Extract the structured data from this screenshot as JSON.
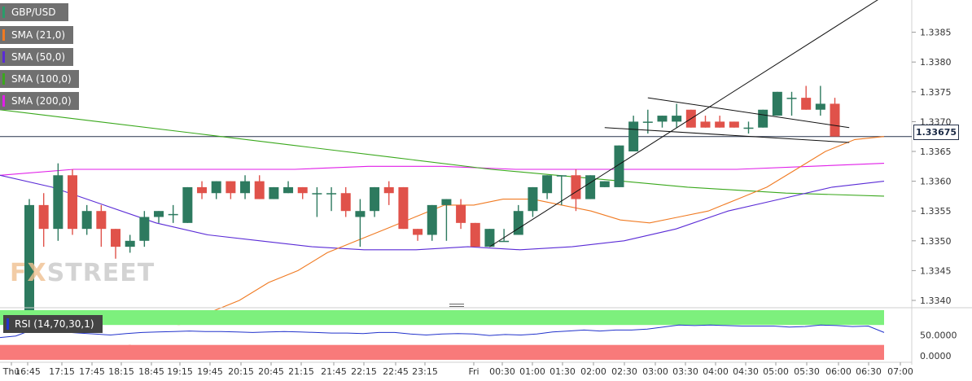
{
  "legend": [
    {
      "label": "GBP/USD",
      "color": "#2a9d6a"
    },
    {
      "label": "SMA (21,0)",
      "color": "#f07a22"
    },
    {
      "label": "SMA (50,0)",
      "color": "#5a2bd6"
    },
    {
      "label": "SMA (100,0)",
      "color": "#3aa81c"
    },
    {
      "label": "SMA (200,0)",
      "color": "#e01ee8"
    }
  ],
  "watermark": {
    "a": "FX",
    "b": "STREET"
  },
  "rsi_label": "RSI (14,70,30,1)",
  "last_price_label": "1.33675",
  "colors": {
    "up": "#2d7a5f",
    "down": "#e0524a",
    "rsi_overbought": "#7df07d",
    "rsi_oversold": "#f87a7a",
    "rsi_line": "#2233cc",
    "price_line": "#26324a"
  },
  "chart_data": {
    "type": "candlestick",
    "symbol": "GBP/USD",
    "timeframe_minutes": 15,
    "ylim": [
      1.334,
      1.339
    ],
    "y_ticks": [
      "1.3340",
      "1.3345",
      "1.3350",
      "1.3355",
      "1.3360",
      "1.3365",
      "1.3370",
      "1.3375",
      "1.3380",
      "1.3385"
    ],
    "x_ticks": [
      "Thu",
      "16:45",
      "17:15",
      "17:45",
      "18:15",
      "18:45",
      "19:15",
      "19:45",
      "20:15",
      "20:45",
      "21:15",
      "21:45",
      "22:15",
      "22:45",
      "23:15",
      "Fri",
      "00:30",
      "01:00",
      "01:30",
      "02:00",
      "02:30",
      "03:00",
      "03:30",
      "04:00",
      "04:30",
      "05:00",
      "05:30",
      "06:00",
      "06:30",
      "07:00"
    ],
    "last_price": 1.33675,
    "candles": [
      {
        "o": 1.3335,
        "h": 1.3357,
        "l": 1.3335,
        "c": 1.3356
      },
      {
        "o": 1.3356,
        "h": 1.3358,
        "l": 1.3349,
        "c": 1.3352
      },
      {
        "o": 1.3352,
        "h": 1.3363,
        "l": 1.335,
        "c": 1.3361
      },
      {
        "o": 1.3361,
        "h": 1.3362,
        "l": 1.3351,
        "c": 1.3352
      },
      {
        "o": 1.3352,
        "h": 1.3356,
        "l": 1.3351,
        "c": 1.3355
      },
      {
        "o": 1.3355,
        "h": 1.3356,
        "l": 1.3349,
        "c": 1.3352
      },
      {
        "o": 1.3352,
        "h": 1.3352,
        "l": 1.3347,
        "c": 1.3349
      },
      {
        "o": 1.3349,
        "h": 1.3351,
        "l": 1.3348,
        "c": 1.335
      },
      {
        "o": 1.335,
        "h": 1.3355,
        "l": 1.3349,
        "c": 1.3354
      },
      {
        "o": 1.3354,
        "h": 1.3355,
        "l": 1.3353,
        "c": 1.3355
      },
      {
        "o": 1.33545,
        "h": 1.3356,
        "l": 1.3353,
        "c": 1.33545
      },
      {
        "o": 1.3353,
        "h": 1.3359,
        "l": 1.3353,
        "c": 1.3359
      },
      {
        "o": 1.3359,
        "h": 1.336,
        "l": 1.3357,
        "c": 1.3358
      },
      {
        "o": 1.3358,
        "h": 1.336,
        "l": 1.3357,
        "c": 1.336
      },
      {
        "o": 1.336,
        "h": 1.336,
        "l": 1.3357,
        "c": 1.3358
      },
      {
        "o": 1.3358,
        "h": 1.3361,
        "l": 1.3357,
        "c": 1.336
      },
      {
        "o": 1.336,
        "h": 1.3361,
        "l": 1.3357,
        "c": 1.3357
      },
      {
        "o": 1.3357,
        "h": 1.3359,
        "l": 1.3357,
        "c": 1.3359
      },
      {
        "o": 1.3358,
        "h": 1.336,
        "l": 1.3358,
        "c": 1.3359
      },
      {
        "o": 1.3359,
        "h": 1.3359,
        "l": 1.3357,
        "c": 1.3358
      },
      {
        "o": 1.3358,
        "h": 1.3359,
        "l": 1.3354,
        "c": 1.3358
      },
      {
        "o": 1.3358,
        "h": 1.3359,
        "l": 1.3355,
        "c": 1.3358
      },
      {
        "o": 1.3358,
        "h": 1.3359,
        "l": 1.3354,
        "c": 1.3355
      },
      {
        "o": 1.3354,
        "h": 1.3357,
        "l": 1.3349,
        "c": 1.3355
      },
      {
        "o": 1.3355,
        "h": 1.3359,
        "l": 1.3354,
        "c": 1.3359
      },
      {
        "o": 1.3359,
        "h": 1.336,
        "l": 1.3356,
        "c": 1.3358
      },
      {
        "o": 1.3359,
        "h": 1.3359,
        "l": 1.3352,
        "c": 1.3352
      },
      {
        "o": 1.3352,
        "h": 1.3352,
        "l": 1.335,
        "c": 1.3351
      },
      {
        "o": 1.3351,
        "h": 1.3356,
        "l": 1.335,
        "c": 1.3356
      },
      {
        "o": 1.3356,
        "h": 1.3357,
        "l": 1.335,
        "c": 1.3357
      },
      {
        "o": 1.3356,
        "h": 1.3357,
        "l": 1.3352,
        "c": 1.3353
      },
      {
        "o": 1.3353,
        "h": 1.3353,
        "l": 1.3349,
        "c": 1.3349
      },
      {
        "o": 1.3349,
        "h": 1.3352,
        "l": 1.3349,
        "c": 1.3352
      },
      {
        "o": 1.335,
        "h": 1.3352,
        "l": 1.335,
        "c": 1.335
      },
      {
        "o": 1.3351,
        "h": 1.3356,
        "l": 1.3351,
        "c": 1.3355
      },
      {
        "o": 1.3355,
        "h": 1.3359,
        "l": 1.3354,
        "c": 1.3359
      },
      {
        "o": 1.3358,
        "h": 1.3361,
        "l": 1.3357,
        "c": 1.3361
      },
      {
        "o": 1.3361,
        "h": 1.3361,
        "l": 1.3356,
        "c": 1.3361
      },
      {
        "o": 1.3361,
        "h": 1.3362,
        "l": 1.3355,
        "c": 1.3357
      },
      {
        "o": 1.3357,
        "h": 1.3361,
        "l": 1.3357,
        "c": 1.3361
      },
      {
        "o": 1.3359,
        "h": 1.336,
        "l": 1.3359,
        "c": 1.336
      },
      {
        "o": 1.3359,
        "h": 1.3366,
        "l": 1.3359,
        "c": 1.3366
      },
      {
        "o": 1.3365,
        "h": 1.3371,
        "l": 1.3365,
        "c": 1.337
      },
      {
        "o": 1.337,
        "h": 1.3372,
        "l": 1.3368,
        "c": 1.337
      },
      {
        "o": 1.337,
        "h": 1.3371,
        "l": 1.3369,
        "c": 1.3371
      },
      {
        "o": 1.337,
        "h": 1.3373,
        "l": 1.3369,
        "c": 1.3371
      },
      {
        "o": 1.3372,
        "h": 1.3372,
        "l": 1.3369,
        "c": 1.3369
      },
      {
        "o": 1.337,
        "h": 1.3371,
        "l": 1.3369,
        "c": 1.3369
      },
      {
        "o": 1.337,
        "h": 1.3371,
        "l": 1.3369,
        "c": 1.3369
      },
      {
        "o": 1.337,
        "h": 1.337,
        "l": 1.3369,
        "c": 1.3369
      },
      {
        "o": 1.3369,
        "h": 1.337,
        "l": 1.3368,
        "c": 1.3369
      },
      {
        "o": 1.3369,
        "h": 1.3372,
        "l": 1.3369,
        "c": 1.3372
      },
      {
        "o": 1.3371,
        "h": 1.3375,
        "l": 1.3371,
        "c": 1.3375
      },
      {
        "o": 1.3374,
        "h": 1.3375,
        "l": 1.3371,
        "c": 1.3374
      },
      {
        "o": 1.3374,
        "h": 1.3376,
        "l": 1.3372,
        "c": 1.3372
      },
      {
        "o": 1.3372,
        "h": 1.3376,
        "l": 1.3371,
        "c": 1.3373
      },
      {
        "o": 1.3373,
        "h": 1.3374,
        "l": 1.3368,
        "c": 1.33675
      }
    ],
    "sma_21": [
      1.3332,
      1.3334,
      1.3336,
      1.3338,
      1.334,
      1.3343,
      1.3345,
      1.3348,
      1.335,
      1.3352,
      1.3354,
      1.3356,
      1.3356,
      1.3357,
      1.3357,
      1.3356,
      1.3355,
      1.33535,
      1.3353,
      1.3354,
      1.3355,
      1.3357,
      1.3359,
      1.3362,
      1.3365,
      1.3367,
      1.33675
    ],
    "sma_50": [
      1.3361,
      1.3359,
      1.3356,
      1.3353,
      1.3351,
      1.335,
      1.3349,
      1.33485,
      1.33485,
      1.3349,
      1.33485,
      1.3349,
      1.335,
      1.3352,
      1.3355,
      1.3357,
      1.3359,
      1.336
    ],
    "sma_100": [
      1.3372,
      1.337,
      1.3368,
      1.3366,
      1.3364,
      1.3362,
      1.33605,
      1.3359,
      1.3358,
      1.33575
    ],
    "sma_200": [
      1.3361,
      1.3362,
      1.3362,
      1.3362,
      1.3362,
      1.33625,
      1.33625,
      1.3362,
      1.3362,
      1.3362,
      1.3362,
      1.33625,
      1.3363
    ],
    "trendlines": [
      {
        "from": {
          "candle": 32,
          "y": 1.3349
        },
        "to": {
          "candle": 60,
          "y": 1.3392
        }
      },
      {
        "from": {
          "candle": 43,
          "y": 1.3374
        },
        "to": {
          "candle": 57,
          "y": 1.3369
        }
      },
      {
        "from": {
          "candle": 40,
          "y": 1.3369
        },
        "to": {
          "candle": 57,
          "y": 1.33665
        }
      }
    ],
    "rsi": {
      "ylim": [
        0,
        100
      ],
      "y_ticks": [
        "50.0000",
        "0.0000"
      ],
      "overbought": 70,
      "oversold": 30,
      "values": [
        45,
        48,
        60,
        58,
        56,
        54,
        52,
        50,
        53,
        55,
        56,
        57,
        58,
        57,
        57,
        56,
        55,
        56,
        57,
        56,
        55,
        54,
        54,
        53,
        55,
        55,
        52,
        50,
        52,
        53,
        52,
        49,
        51,
        50,
        52,
        56,
        58,
        60,
        58,
        60,
        60,
        62,
        66,
        70,
        69,
        70,
        69,
        68,
        68,
        68,
        66,
        67,
        70,
        69,
        67,
        68,
        55
      ]
    }
  }
}
